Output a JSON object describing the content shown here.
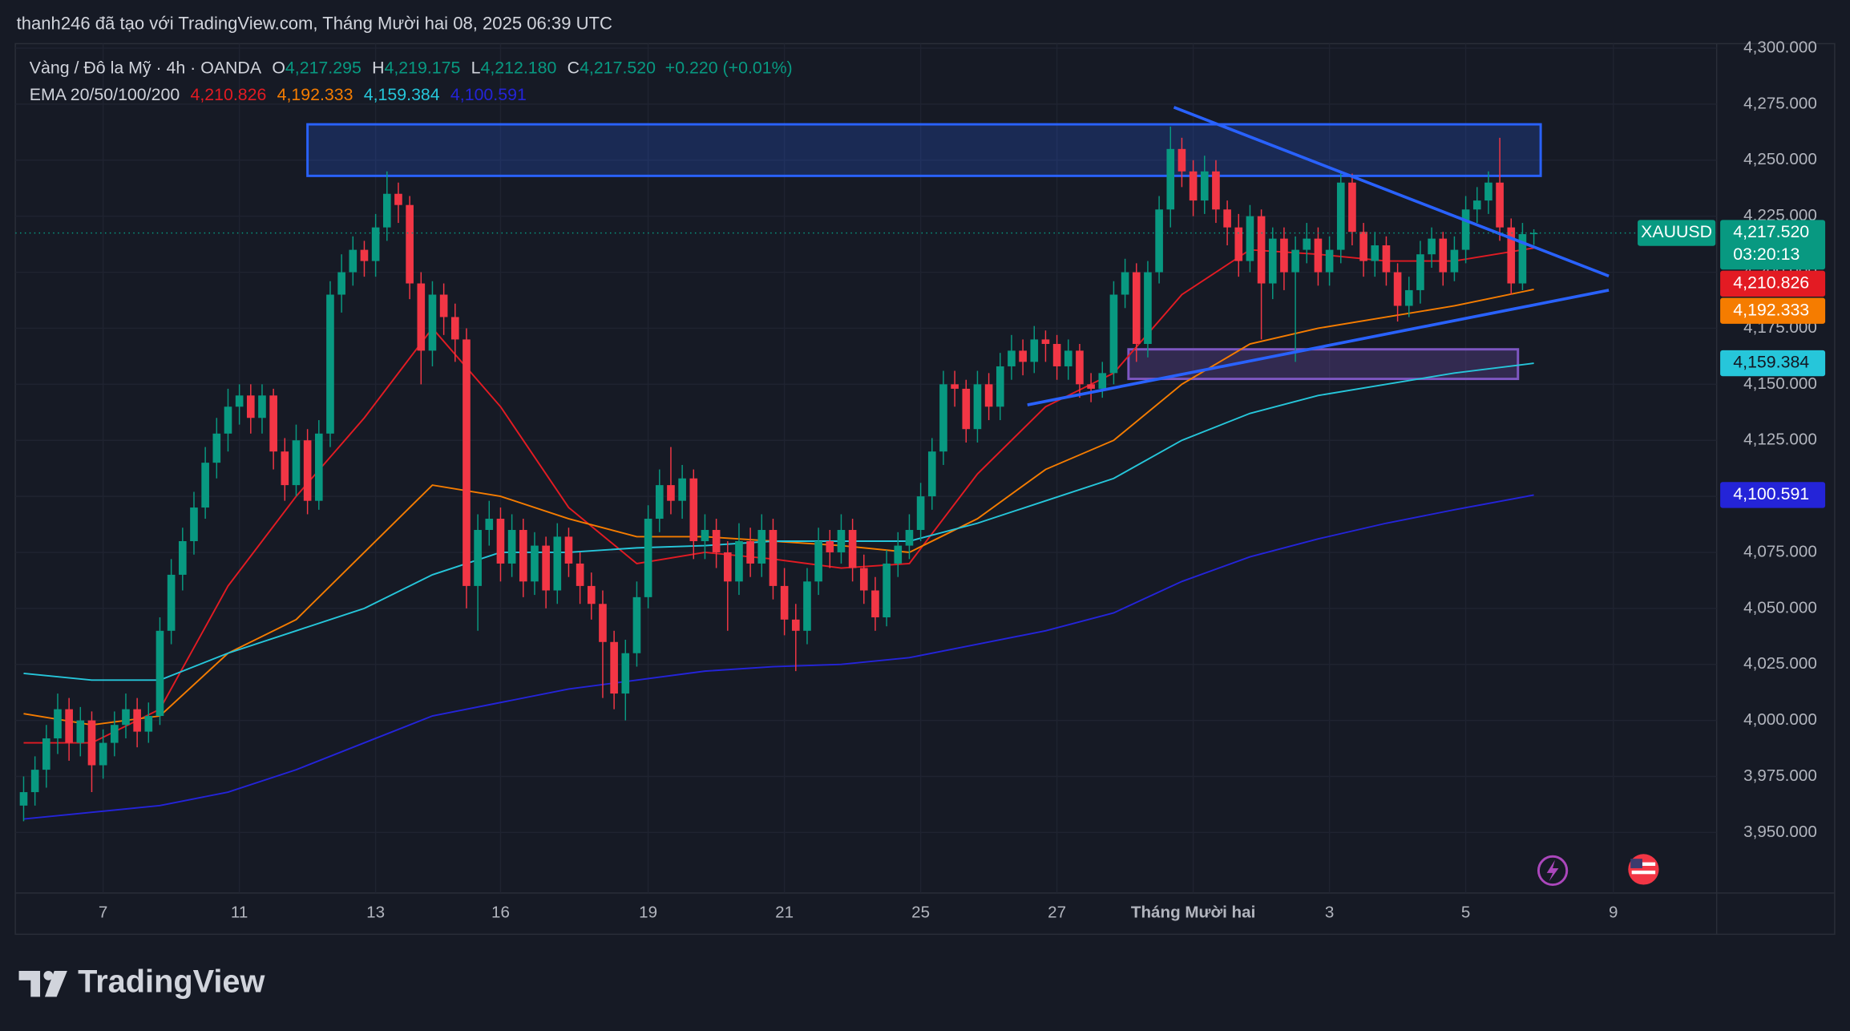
{
  "header": "thanh246 đã tạo với TradingView.com, Tháng Mười hai 08, 2025 06:39 UTC",
  "brand": "TradingView",
  "chart_data": {
    "type": "candlestick",
    "symbol_title": "Vàng / Đô la Mỹ · 4h · OANDA",
    "ohlc_legend": [
      [
        "O",
        "4,217.295"
      ],
      [
        "H",
        "4,219.175"
      ],
      [
        "L",
        "4,212.180"
      ],
      [
        "C",
        "4,217.520"
      ]
    ],
    "change": "+0.220 (+0.01%)",
    "indicator_title": "EMA 20/50/100/200",
    "symbol": "XAUUSD",
    "countdown": "03:20:13",
    "last_price": {
      "value": 4217.52,
      "label": "4,217.520"
    },
    "up_color": "#089981",
    "down_color": "#f23645",
    "grid": true,
    "xlim": [
      -0.73,
      149.1
    ],
    "ylim": [
      3923,
      4302
    ],
    "xticks": [
      {
        "value": 7,
        "label": "7"
      },
      {
        "value": 19,
        "label": "11"
      },
      {
        "value": 31,
        "label": "13"
      },
      {
        "value": 42,
        "label": "16"
      },
      {
        "value": 55,
        "label": "19"
      },
      {
        "value": 67,
        "label": "21"
      },
      {
        "value": 79,
        "label": "25"
      },
      {
        "value": 91,
        "label": "27"
      },
      {
        "value": 103,
        "label": "Tháng Mười hai"
      },
      {
        "value": 115,
        "label": "3"
      },
      {
        "value": 127,
        "label": "5"
      },
      {
        "value": 140,
        "label": "9"
      }
    ],
    "yticks": [
      {
        "value": 3950,
        "label": "3,950.000"
      },
      {
        "value": 3975,
        "label": "3,975.000"
      },
      {
        "value": 4000,
        "label": "4,000.000"
      },
      {
        "value": 4025,
        "label": "4,025.000"
      },
      {
        "value": 4050,
        "label": "4,050.000"
      },
      {
        "value": 4075,
        "label": "4,075.000"
      },
      {
        "value": 4100,
        "label": "4,100.000"
      },
      {
        "value": 4125,
        "label": "4,125.000"
      },
      {
        "value": 4150,
        "label": "4,150.000"
      },
      {
        "value": 4175,
        "label": "4,175.000"
      },
      {
        "value": 4200,
        "label": "4,200.000"
      },
      {
        "value": 4225,
        "label": "4,225.000"
      },
      {
        "value": 4250,
        "label": "4,250.000"
      },
      {
        "value": 4275,
        "label": "4,275.000"
      },
      {
        "value": 4300,
        "label": "4,300.000"
      }
    ],
    "candles": [
      [
        3962,
        3975,
        3955,
        3968
      ],
      [
        3968,
        3984,
        3962,
        3978
      ],
      [
        3978,
        3998,
        3970,
        3992
      ],
      [
        3992,
        4012,
        3985,
        4005
      ],
      [
        4005,
        4010,
        3982,
        3990
      ],
      [
        3990,
        4006,
        3984,
        4000
      ],
      [
        4000,
        4004,
        3968,
        3980
      ],
      [
        3980,
        3996,
        3974,
        3990
      ],
      [
        3990,
        4004,
        3984,
        3998
      ],
      [
        3998,
        4012,
        3992,
        4005
      ],
      [
        4005,
        4010,
        3988,
        3995
      ],
      [
        3995,
        4008,
        3990,
        4002
      ],
      [
        4002,
        4046,
        3998,
        4040
      ],
      [
        4040,
        4072,
        4034,
        4065
      ],
      [
        4065,
        4086,
        4058,
        4080
      ],
      [
        4080,
        4102,
        4074,
        4095
      ],
      [
        4095,
        4122,
        4090,
        4115
      ],
      [
        4115,
        4135,
        4108,
        4128
      ],
      [
        4128,
        4148,
        4120,
        4140
      ],
      [
        4140,
        4150,
        4132,
        4145
      ],
      [
        4145,
        4150,
        4128,
        4135
      ],
      [
        4135,
        4150,
        4128,
        4145
      ],
      [
        4145,
        4148,
        4112,
        4120
      ],
      [
        4120,
        4126,
        4098,
        4105
      ],
      [
        4105,
        4132,
        4100,
        4125
      ],
      [
        4125,
        4130,
        4092,
        4098
      ],
      [
        4098,
        4134,
        4094,
        4128
      ],
      [
        4128,
        4196,
        4122,
        4190
      ],
      [
        4190,
        4208,
        4182,
        4200
      ],
      [
        4200,
        4216,
        4194,
        4210
      ],
      [
        4210,
        4214,
        4198,
        4205
      ],
      [
        4205,
        4226,
        4198,
        4220
      ],
      [
        4220,
        4245,
        4214,
        4235
      ],
      [
        4235,
        4240,
        4222,
        4230
      ],
      [
        4230,
        4234,
        4188,
        4195
      ],
      [
        4195,
        4200,
        4150,
        4165
      ],
      [
        4165,
        4196,
        4158,
        4190
      ],
      [
        4190,
        4195,
        4172,
        4180
      ],
      [
        4180,
        4186,
        4160,
        4170
      ],
      [
        4170,
        4175,
        4050,
        4060
      ],
      [
        4060,
        4092,
        4040,
        4085
      ],
      [
        4085,
        4098,
        4078,
        4090
      ],
      [
        4090,
        4095,
        4062,
        4070
      ],
      [
        4070,
        4092,
        4064,
        4085
      ],
      [
        4085,
        4090,
        4055,
        4062
      ],
      [
        4062,
        4084,
        4056,
        4078
      ],
      [
        4078,
        4082,
        4050,
        4058
      ],
      [
        4058,
        4088,
        4052,
        4082
      ],
      [
        4082,
        4086,
        4064,
        4070
      ],
      [
        4070,
        4075,
        4052,
        4060
      ],
      [
        4060,
        4066,
        4045,
        4052
      ],
      [
        4052,
        4058,
        4010,
        4035
      ],
      [
        4035,
        4040,
        4005,
        4012
      ],
      [
        4012,
        4036,
        4000,
        4030
      ],
      [
        4030,
        4062,
        4024,
        4055
      ],
      [
        4055,
        4096,
        4050,
        4090
      ],
      [
        4090,
        4112,
        4084,
        4105
      ],
      [
        4105,
        4122,
        4092,
        4098
      ],
      [
        4098,
        4114,
        4090,
        4108
      ],
      [
        4108,
        4112,
        4072,
        4080
      ],
      [
        4080,
        4092,
        4072,
        4085
      ],
      [
        4085,
        4090,
        4068,
        4075
      ],
      [
        4075,
        4080,
        4040,
        4062
      ],
      [
        4062,
        4088,
        4056,
        4080
      ],
      [
        4080,
        4086,
        4064,
        4070
      ],
      [
        4070,
        4092,
        4064,
        4085
      ],
      [
        4085,
        4090,
        4054,
        4060
      ],
      [
        4060,
        4068,
        4038,
        4045
      ],
      [
        4045,
        4052,
        4022,
        4040
      ],
      [
        4040,
        4068,
        4034,
        4062
      ],
      [
        4062,
        4086,
        4056,
        4080
      ],
      [
        4080,
        4085,
        4068,
        4075
      ],
      [
        4075,
        4092,
        4070,
        4085
      ],
      [
        4085,
        4090,
        4062,
        4068
      ],
      [
        4068,
        4074,
        4052,
        4058
      ],
      [
        4058,
        4064,
        4040,
        4046
      ],
      [
        4046,
        4076,
        4042,
        4070
      ],
      [
        4070,
        4084,
        4064,
        4078
      ],
      [
        4078,
        4092,
        4072,
        4085
      ],
      [
        4085,
        4106,
        4080,
        4100
      ],
      [
        4100,
        4126,
        4094,
        4120
      ],
      [
        4120,
        4156,
        4114,
        4150
      ],
      [
        4150,
        4156,
        4140,
        4148
      ],
      [
        4148,
        4152,
        4124,
        4130
      ],
      [
        4130,
        4156,
        4124,
        4150
      ],
      [
        4150,
        4155,
        4134,
        4140
      ],
      [
        4140,
        4164,
        4134,
        4158
      ],
      [
        4158,
        4172,
        4152,
        4165
      ],
      [
        4165,
        4170,
        4154,
        4160
      ],
      [
        4160,
        4176,
        4155,
        4170
      ],
      [
        4170,
        4174,
        4160,
        4168
      ],
      [
        4168,
        4172,
        4152,
        4158
      ],
      [
        4158,
        4170,
        4152,
        4165
      ],
      [
        4165,
        4168,
        4144,
        4150
      ],
      [
        4150,
        4155,
        4142,
        4148
      ],
      [
        4148,
        4160,
        4144,
        4155
      ],
      [
        4155,
        4196,
        4150,
        4190
      ],
      [
        4190,
        4206,
        4184,
        4200
      ],
      [
        4200,
        4204,
        4160,
        4168
      ],
      [
        4168,
        4205,
        4162,
        4200
      ],
      [
        4200,
        4234,
        4195,
        4228
      ],
      [
        4228,
        4265,
        4220,
        4255
      ],
      [
        4255,
        4260,
        4238,
        4245
      ],
      [
        4245,
        4250,
        4225,
        4232
      ],
      [
        4232,
        4252,
        4226,
        4245
      ],
      [
        4245,
        4250,
        4222,
        4228
      ],
      [
        4228,
        4232,
        4212,
        4220
      ],
      [
        4220,
        4226,
        4198,
        4205
      ],
      [
        4205,
        4230,
        4200,
        4225
      ],
      [
        4225,
        4228,
        4170,
        4195
      ],
      [
        4195,
        4220,
        4188,
        4215
      ],
      [
        4215,
        4220,
        4192,
        4200
      ],
      [
        4200,
        4216,
        4160,
        4210
      ],
      [
        4210,
        4222,
        4204,
        4215
      ],
      [
        4215,
        4220,
        4194,
        4200
      ],
      [
        4200,
        4216,
        4194,
        4210
      ],
      [
        4210,
        4245,
        4204,
        4240
      ],
      [
        4240,
        4244,
        4212,
        4218
      ],
      [
        4218,
        4222,
        4198,
        4205
      ],
      [
        4205,
        4218,
        4198,
        4212
      ],
      [
        4212,
        4216,
        4194,
        4200
      ],
      [
        4200,
        4204,
        4178,
        4185
      ],
      [
        4185,
        4198,
        4180,
        4192
      ],
      [
        4192,
        4214,
        4186,
        4208
      ],
      [
        4208,
        4220,
        4202,
        4215
      ],
      [
        4215,
        4218,
        4194,
        4200
      ],
      [
        4200,
        4216,
        4196,
        4210
      ],
      [
        4210,
        4234,
        4204,
        4228
      ],
      [
        4228,
        4238,
        4222,
        4232
      ],
      [
        4232,
        4245,
        4226,
        4240
      ],
      [
        4240,
        4260,
        4214,
        4220
      ],
      [
        4220,
        4224,
        4190,
        4195
      ],
      [
        4195,
        4222,
        4192,
        4217
      ],
      [
        4217.295,
        4219.175,
        4212.18,
        4217.52
      ]
    ],
    "series": [
      {
        "color": "#e31b23",
        "label_text": "#ffffff",
        "x": [
          0,
          6,
          12,
          18,
          24,
          30,
          36,
          42,
          48,
          54,
          60,
          66,
          72,
          78,
          84,
          90,
          96,
          102,
          108,
          114,
          120,
          126,
          133
        ],
        "values": [
          3990,
          3990,
          4005,
          4060,
          4100,
          4135,
          4175,
          4140,
          4095,
          4070,
          4075,
          4072,
          4068,
          4070,
          4110,
          4140,
          4155,
          4190,
          4210,
          4208,
          4205,
          4205,
          4210.826
        ],
        "value_label": "4,210.826"
      },
      {
        "color": "#f57c00",
        "label_text": "#ffffff",
        "x": [
          0,
          6,
          12,
          18,
          24,
          30,
          36,
          42,
          48,
          54,
          60,
          66,
          72,
          78,
          84,
          90,
          96,
          102,
          108,
          114,
          120,
          126,
          133
        ],
        "values": [
          4003,
          3998,
          4002,
          4030,
          4045,
          4075,
          4105,
          4100,
          4090,
          4082,
          4082,
          4080,
          4078,
          4075,
          4090,
          4112,
          4125,
          4150,
          4168,
          4175,
          4180,
          4185,
          4192.333
        ],
        "value_label": "4,192.333"
      },
      {
        "color": "#26c6da",
        "label_text": "#131722",
        "x": [
          0,
          6,
          12,
          18,
          24,
          30,
          36,
          42,
          48,
          54,
          60,
          66,
          72,
          78,
          84,
          90,
          96,
          102,
          108,
          114,
          120,
          126,
          133
        ],
        "values": [
          4021,
          4018,
          4018,
          4030,
          4040,
          4050,
          4065,
          4075,
          4075,
          4077,
          4078,
          4080,
          4080,
          4080,
          4088,
          4098,
          4108,
          4125,
          4137,
          4145,
          4150,
          4155,
          4159.384
        ],
        "value_label": "4,159.384"
      },
      {
        "color": "#2424d8",
        "label_text": "#ffffff",
        "x": [
          0,
          6,
          12,
          18,
          24,
          30,
          36,
          42,
          48,
          54,
          60,
          66,
          72,
          78,
          84,
          90,
          96,
          102,
          108,
          114,
          120,
          126,
          133
        ],
        "values": [
          3956,
          3959,
          3962,
          3968,
          3978,
          3990,
          4002,
          4008,
          4014,
          4018,
          4022,
          4024,
          4025,
          4028,
          4034,
          4040,
          4048,
          4062,
          4073,
          4081,
          4088,
          4094,
          4100.591
        ],
        "value_label": "4,100.591"
      }
    ],
    "drawings": [
      {
        "kind": "rect",
        "color": "#2962ff",
        "fill": "rgba(41,98,255,0.22)",
        "x": [
          25.0,
          133.6
        ],
        "y": [
          4266,
          4243
        ]
      },
      {
        "kind": "rect",
        "color": "#7e57c2",
        "fill": "rgba(126,87,194,0.28)",
        "x": [
          97.3,
          131.6
        ],
        "y": [
          4165.6,
          4152.4
        ]
      },
      {
        "kind": "line",
        "color": "#2962ff",
        "x": [
          101.3,
          139.6
        ],
        "y": [
          4273.6,
          4198.3
        ]
      },
      {
        "kind": "line",
        "color": "#2962ff",
        "x": [
          88.4,
          139.6
        ],
        "y": [
          4140.8,
          4192.0
        ]
      }
    ]
  }
}
